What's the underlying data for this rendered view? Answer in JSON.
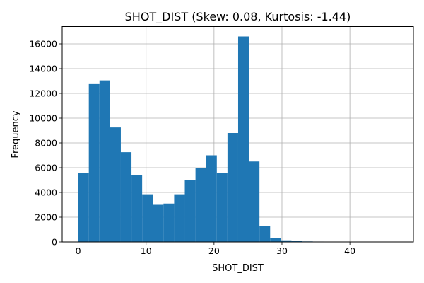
{
  "chart_data": {
    "type": "bar",
    "title": "SHOT_DIST (Skew: 0.08, Kurtosis: -1.44)",
    "xlabel": "SHOT_DIST",
    "ylabel": "Frequency",
    "xlim": [
      -2.35,
      49.35
    ],
    "ylim": [
      0,
      17400
    ],
    "xticks": [
      0,
      10,
      20,
      30,
      40
    ],
    "yticks": [
      0,
      2000,
      4000,
      6000,
      8000,
      10000,
      12000,
      14000,
      16000
    ],
    "grid": true,
    "bar_color": "#1f77b4",
    "bin_edges": [
      0.0,
      1.57,
      3.14,
      4.71,
      6.28,
      7.85,
      9.42,
      10.99,
      12.56,
      14.13,
      15.7,
      17.27,
      18.84,
      20.41,
      21.98,
      23.55,
      25.12,
      26.69,
      28.26,
      29.83,
      31.4,
      32.97,
      34.54,
      36.11,
      37.68,
      39.25,
      40.82,
      42.39,
      43.96,
      45.53,
      47.1
    ],
    "values": [
      5550,
      12750,
      13050,
      9250,
      7250,
      5400,
      3850,
      3000,
      3100,
      3850,
      5000,
      5950,
      7000,
      5550,
      8800,
      16600,
      6500,
      1300,
      330,
      130,
      70,
      40,
      30,
      25,
      20,
      18,
      15,
      12,
      10,
      6
    ]
  }
}
